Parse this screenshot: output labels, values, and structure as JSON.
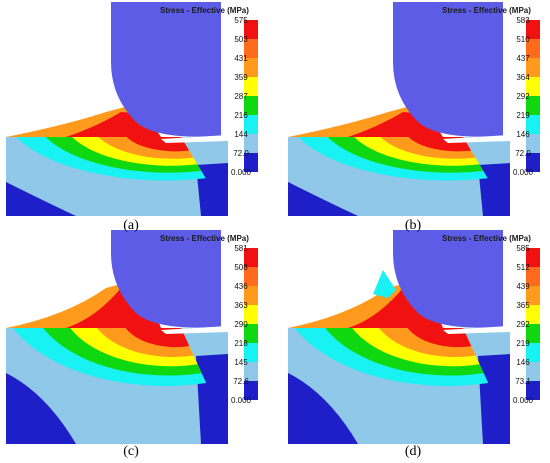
{
  "colors": {
    "blue": "#5C5CE6",
    "navy": "#1F1FC9",
    "lightblue": "#8FC8E8",
    "cyan": "#18F2F2",
    "green": "#10D810",
    "yellow": "#FFFF00",
    "orange": "#FF9A1C",
    "red": "#F21111",
    "white": "#FFFFFF"
  },
  "legend_colors": [
    "#F21111",
    "#FF6A1C",
    "#FF9A1C",
    "#FFFF00",
    "#10D810",
    "#18F2F2",
    "#8FC8E8",
    "#1F1FC9"
  ],
  "panels": [
    {
      "id": "a",
      "title": "Stress - Effective (MPa)",
      "ticks": [
        "575",
        "503",
        "431",
        "359",
        "287",
        "216",
        "144",
        "72.0",
        "0.000"
      ],
      "caption": "(a)"
    },
    {
      "id": "b",
      "title": "Stress - Effective (MPa)",
      "ticks": [
        "583",
        "510",
        "437",
        "364",
        "292",
        "219",
        "146",
        "72.9",
        "0.000"
      ],
      "caption": "(b)"
    },
    {
      "id": "c",
      "title": "Stress - Effective (MPa)",
      "ticks": [
        "581",
        "508",
        "436",
        "363",
        "290",
        "218",
        "145",
        "72.6",
        "0.000"
      ],
      "caption": "(c)"
    },
    {
      "id": "d",
      "title": "Stress - Effective (MPa)",
      "ticks": [
        "585",
        "512",
        "439",
        "365",
        "292",
        "219",
        "146",
        "73.1",
        "0.000"
      ],
      "caption": "(d)"
    }
  ]
}
